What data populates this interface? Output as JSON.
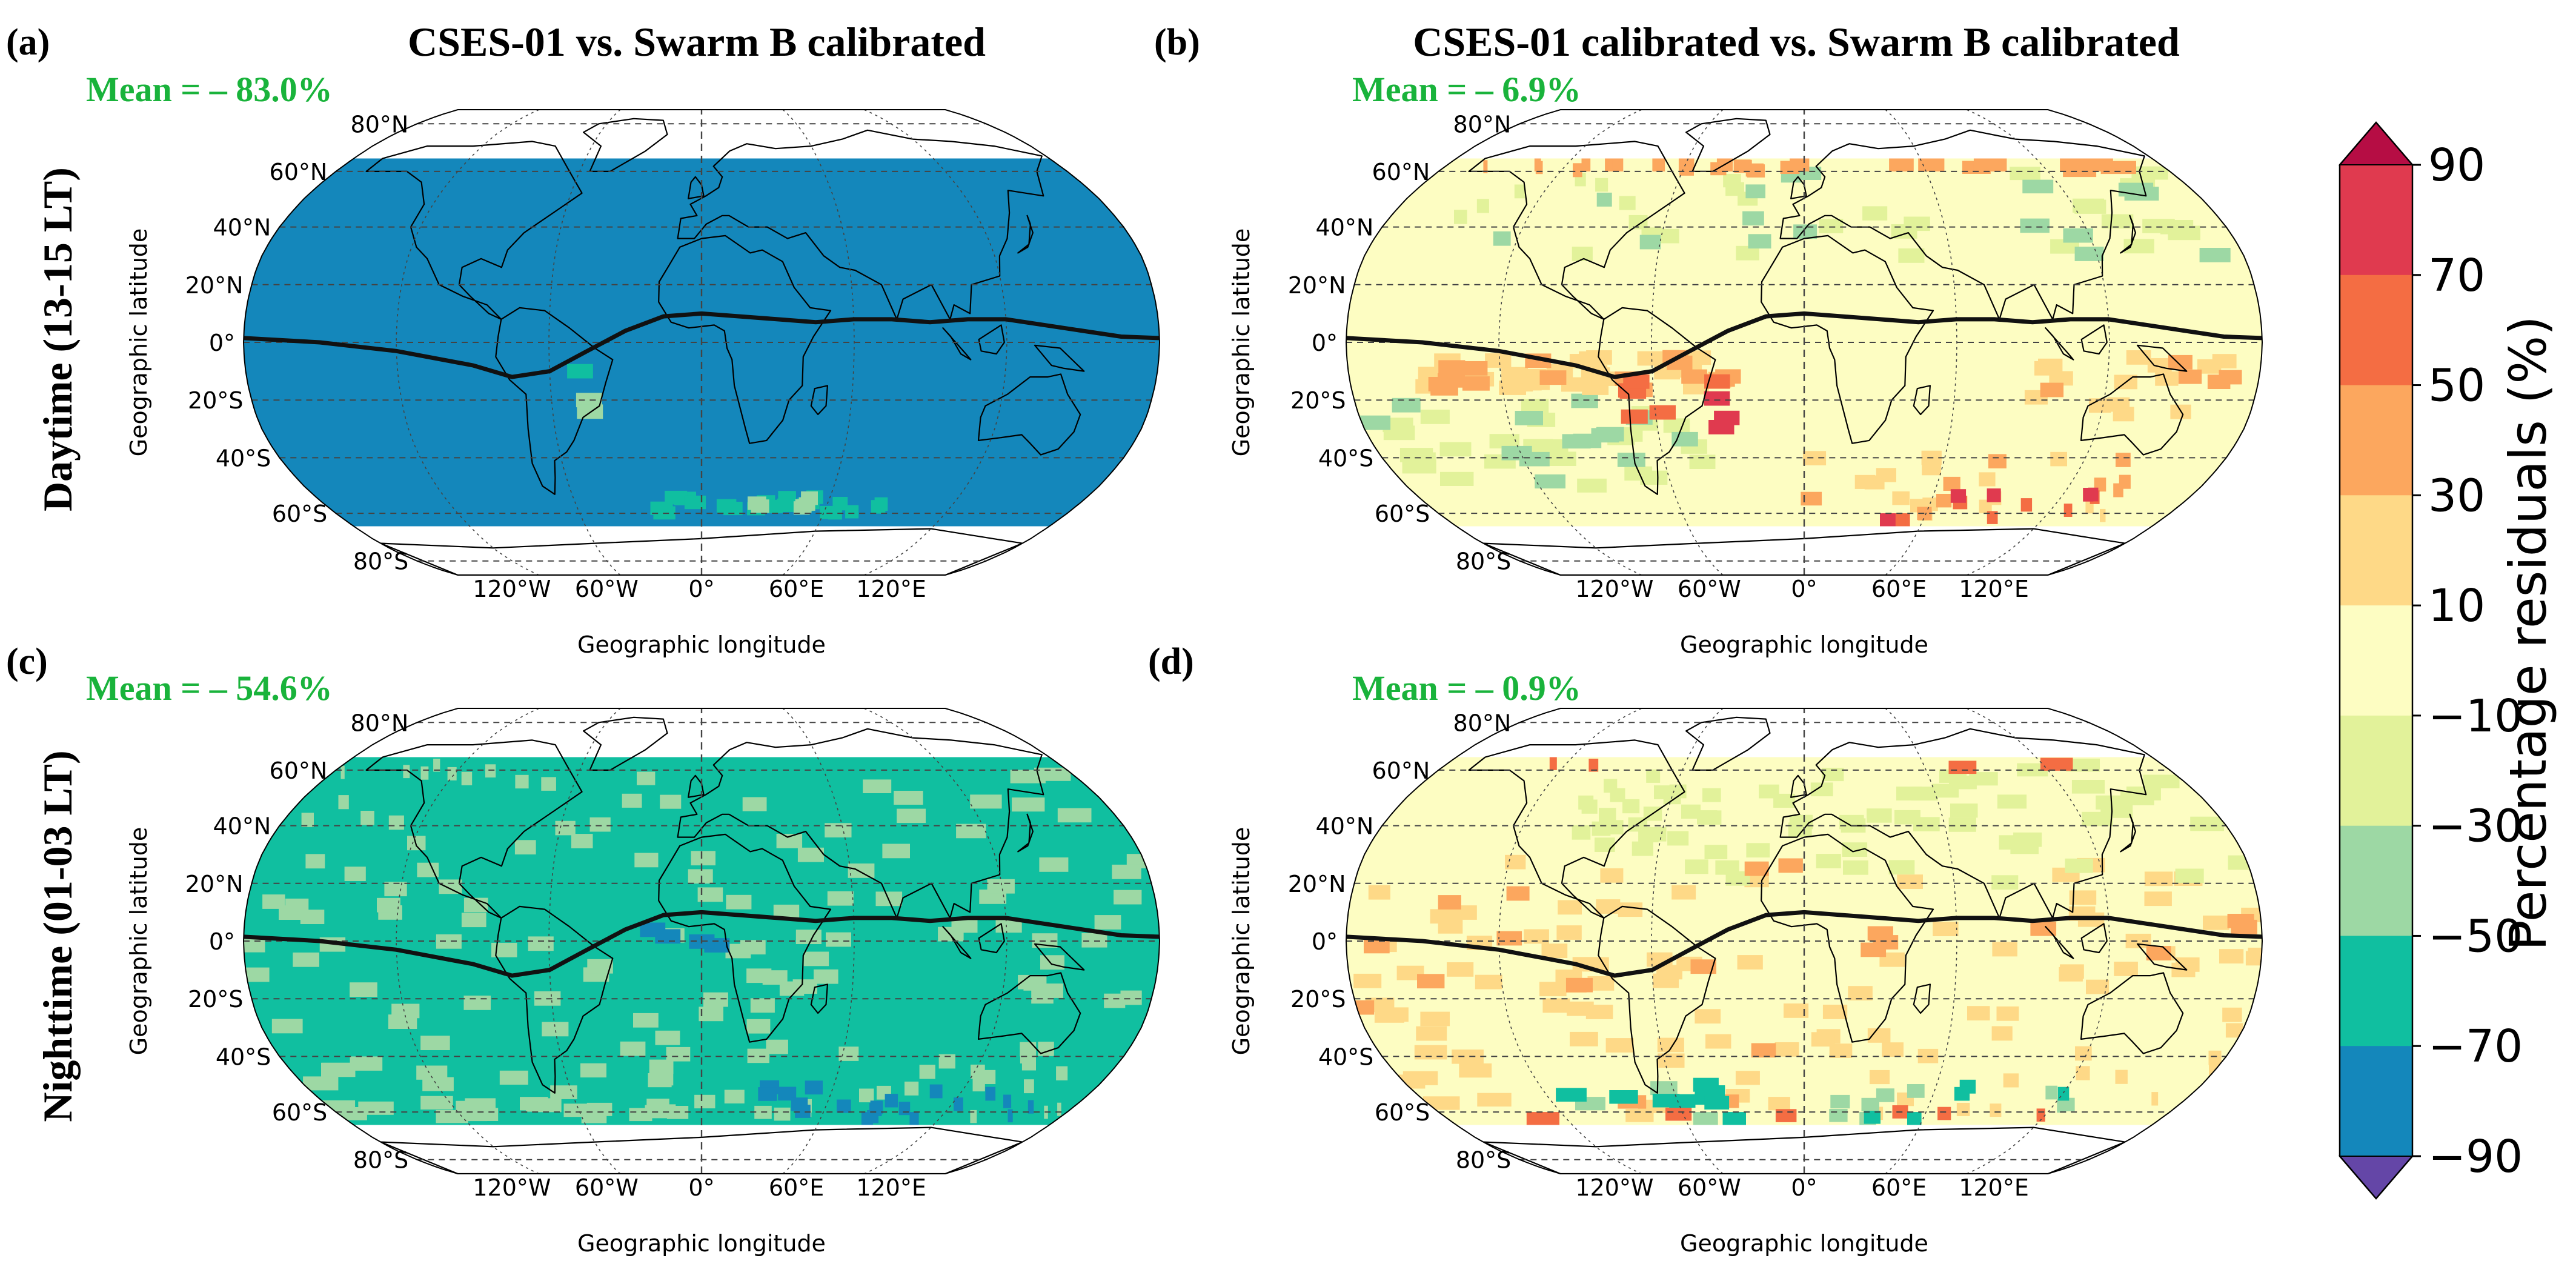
{
  "chart_data": [
    {
      "type": "heatmap",
      "panel_label": "(a)",
      "title": "CSES-01 vs. Swarm B calibrated",
      "row_label": "Daytime (13-15 LT)",
      "mean_text": "Mean = – 83.0%",
      "xlabel": "Geographic longitude",
      "ylabel": "Geographic latitude",
      "projection": "Robinson",
      "lat_ticks": [
        "80°N",
        "60°N",
        "40°N",
        "20°N",
        "0°",
        "20°S",
        "40°S",
        "60°S",
        "80°S"
      ],
      "lon_ticks": [
        "120°W",
        "60°W",
        "0°",
        "60°E",
        "120°E"
      ],
      "data_lat_range": [
        -65,
        65
      ],
      "dominant_bin": "-90 to -70",
      "minor_bins": [
        "-70 to -50",
        "-50 to -30"
      ],
      "equator_line": true
    },
    {
      "type": "heatmap",
      "panel_label": "(b)",
      "title": "CSES-01 calibrated vs. Swarm B calibrated",
      "mean_text": "Mean = – 6.9%",
      "xlabel": "Geographic longitude",
      "ylabel": "Geographic latitude",
      "projection": "Robinson",
      "lat_ticks": [
        "80°N",
        "60°N",
        "40°N",
        "20°N",
        "0°",
        "20°S",
        "40°S",
        "60°S",
        "80°S"
      ],
      "lon_ticks": [
        "120°W",
        "60°W",
        "0°",
        "60°E",
        "120°E"
      ],
      "data_lat_range": [
        -65,
        65
      ],
      "dominant_bin": "-10 to 10",
      "minor_bins": [
        "-30 to -10",
        "-50 to -30",
        "10 to 30",
        "30 to 50",
        "50 to 70",
        "70 to 90"
      ],
      "equator_line": true
    },
    {
      "type": "heatmap",
      "panel_label": "(c)",
      "row_label": "Nighttime (01-03 LT)",
      "mean_text": "Mean = – 54.6%",
      "xlabel": "Geographic longitude",
      "ylabel": "Geographic latitude",
      "projection": "Robinson",
      "lat_ticks": [
        "80°N",
        "60°N",
        "40°N",
        "20°N",
        "0°",
        "20°S",
        "40°S",
        "60°S",
        "80°S"
      ],
      "lon_ticks": [
        "120°W",
        "60°W",
        "0°",
        "60°E",
        "120°E"
      ],
      "data_lat_range": [
        -65,
        65
      ],
      "dominant_bin": "-70 to -50",
      "minor_bins": [
        "-50 to -30",
        "-90 to -70"
      ],
      "equator_line": true
    },
    {
      "type": "heatmap",
      "panel_label": "(d)",
      "mean_text": "Mean = – 0.9%",
      "xlabel": "Geographic longitude",
      "ylabel": "Geographic latitude",
      "projection": "Robinson",
      "lat_ticks": [
        "80°N",
        "60°N",
        "40°N",
        "20°N",
        "0°",
        "20°S",
        "40°S",
        "60°S",
        "80°S"
      ],
      "lon_ticks": [
        "120°W",
        "60°W",
        "0°",
        "60°E",
        "120°E"
      ],
      "data_lat_range": [
        -65,
        65
      ],
      "dominant_bin": "-10 to 10",
      "minor_bins": [
        "10 to 30",
        "-30 to -10",
        "30 to 50",
        "50 to 70",
        "-70 to -50"
      ],
      "equator_line": true
    }
  ],
  "colorbar": {
    "label": "Percentage residuals (%)",
    "ticks": [
      "90",
      "70",
      "50",
      "30",
      "10",
      "−10",
      "−30",
      "−50",
      "−70",
      "−90"
    ],
    "bins": [
      {
        "range": "70 to 90",
        "color": "#e03a4f"
      },
      {
        "range": "50 to 70",
        "color": "#f46d43"
      },
      {
        "range": "30 to 50",
        "color": "#fca75e"
      },
      {
        "range": "10 to 30",
        "color": "#fed987"
      },
      {
        "range": "-10 to 10",
        "color": "#fdfdc2"
      },
      {
        "range": "-30 to -10",
        "color": "#e2f29a"
      },
      {
        "range": "-50 to -30",
        "color": "#9dd8a4"
      },
      {
        "range": "-70 to -50",
        "color": "#10bfa0"
      },
      {
        "range": "-90 to -70",
        "color": "#1487bb"
      }
    ],
    "extend_over_color": "#b60d44",
    "extend_under_color": "#6446a7"
  },
  "colors": {
    "mean_text": "#19b33b",
    "equator_line": "#111111",
    "grid_line": "#444444"
  }
}
